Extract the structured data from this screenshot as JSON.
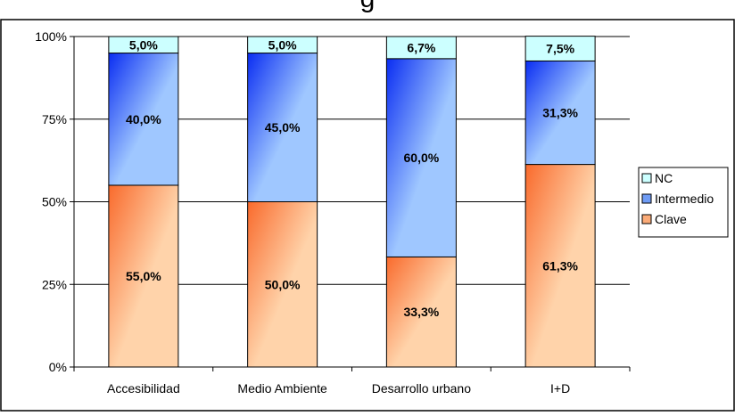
{
  "chart_data": {
    "type": "bar",
    "stacked": true,
    "percent": true,
    "title": "g",
    "categories": [
      "Accesibilidad",
      "Medio Ambiente",
      "Desarrollo urbano",
      "I+D"
    ],
    "series": [
      {
        "name": "Clave",
        "values": [
          55.0,
          50.0,
          33.3,
          61.3
        ],
        "labels": [
          "55,0%",
          "50,0%",
          "33,3%",
          "61,3%"
        ]
      },
      {
        "name": "Intermedio",
        "values": [
          40.0,
          45.0,
          60.0,
          31.3
        ],
        "labels": [
          "40,0%",
          "45,0%",
          "60,0%",
          "31,3%"
        ]
      },
      {
        "name": "NC",
        "values": [
          5.0,
          5.0,
          6.7,
          7.5
        ],
        "labels": [
          "5,0%",
          "5,0%",
          "6,7%",
          "7,5%"
        ]
      }
    ],
    "yticks": [
      0,
      25,
      50,
      75,
      100
    ],
    "ytick_labels": [
      "0%",
      "25%",
      "50%",
      "75%",
      "100%"
    ],
    "ylim": [
      0,
      100
    ],
    "grid": true,
    "legend": "right",
    "colors": {
      "Clave": {
        "dark": "#f96a2c",
        "light": "#ffd3aa"
      },
      "Intermedio": {
        "dark": "#0a2df2",
        "light": "#9fc7ff"
      },
      "NC": {
        "dark": "#ccffff",
        "light": "#ccffff"
      }
    }
  }
}
